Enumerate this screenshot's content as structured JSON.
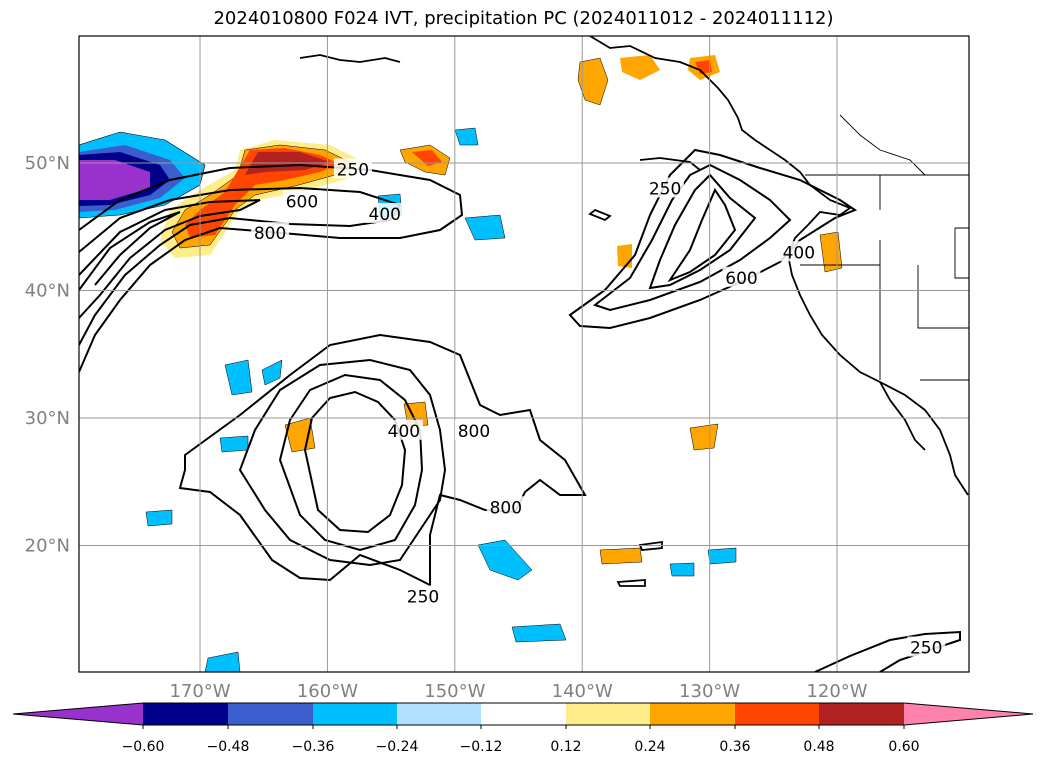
{
  "title": "2024010800 F024 IVT, precipitation PC (2024011012 - 2024011112)",
  "map": {
    "lat_labels": [
      {
        "lat": 50,
        "label": "50°N"
      },
      {
        "lat": 40,
        "label": "40°N"
      },
      {
        "lat": 30,
        "label": "30°N"
      },
      {
        "lat": 20,
        "label": "20°N"
      }
    ],
    "lon_labels": [
      {
        "lon": -170,
        "label": "170°W"
      },
      {
        "lon": -160,
        "label": "160°W"
      },
      {
        "lon": -150,
        "label": "150°W"
      },
      {
        "lon": -140,
        "label": "140°W"
      },
      {
        "lon": -130,
        "label": "130°W"
      },
      {
        "lon": -120,
        "label": "120°W"
      }
    ],
    "grid": true,
    "ivt_contour_labels": [
      {
        "text": "250",
        "lon": -158.0,
        "lat": 49.5
      },
      {
        "text": "600",
        "lon": -162.0,
        "lat": 47.0
      },
      {
        "text": "400",
        "lon": -155.5,
        "lat": 46.0
      },
      {
        "text": "800",
        "lon": -164.5,
        "lat": 44.5
      },
      {
        "text": "250",
        "lon": -133.5,
        "lat": 48.0
      },
      {
        "text": "400",
        "lon": -123.0,
        "lat": 43.0
      },
      {
        "text": "600",
        "lon": -127.5,
        "lat": 41.0
      },
      {
        "text": "400",
        "lon": -154.0,
        "lat": 29.0
      },
      {
        "text": "800",
        "lon": -148.5,
        "lat": 29.0
      },
      {
        "text": "800",
        "lon": -146.0,
        "lat": 23.0
      },
      {
        "text": "250",
        "lon": -152.5,
        "lat": 16.0
      },
      {
        "text": "250",
        "lon": -113.0,
        "lat": 12.0
      }
    ]
  },
  "colorbar": {
    "ticks": [
      "−0.60",
      "−0.48",
      "−0.36",
      "−0.24",
      "−0.12",
      "0.12",
      "0.24",
      "0.36",
      "0.48",
      "0.60"
    ],
    "colors": [
      "#9932cc",
      "#00008b",
      "#3a5fcd",
      "#00bfff",
      "#b0e2ff",
      "#ffffff",
      "#ffec8b",
      "#ffa500",
      "#ff4500",
      "#b22222",
      "#ff82ab"
    ]
  }
}
